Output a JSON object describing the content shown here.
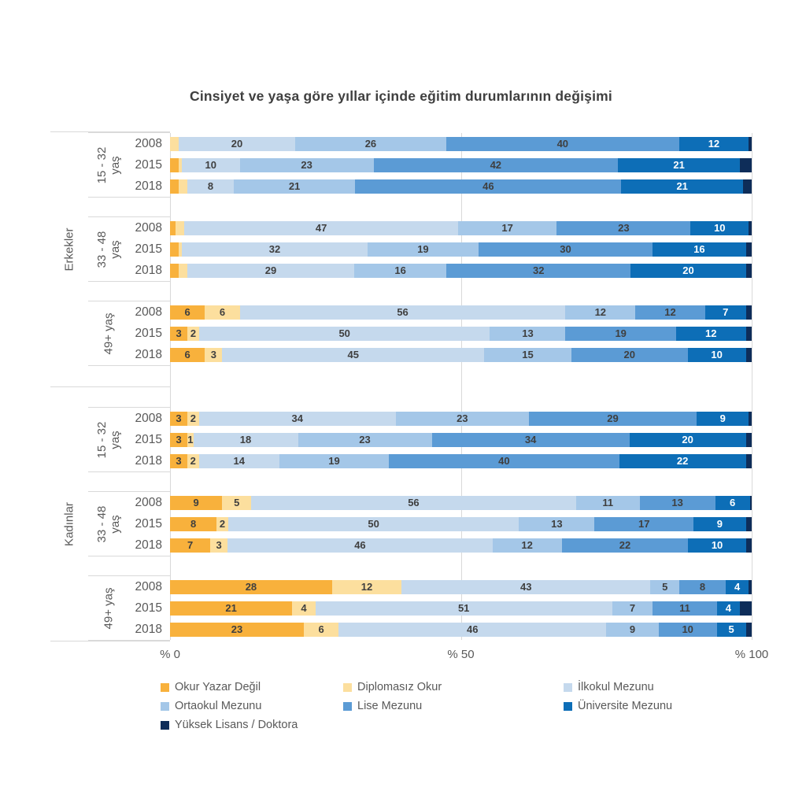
{
  "title": "Cinsiyet ve yaşa göre yıllar içinde eğitim durumlarının değişimi",
  "chart_data": {
    "type": "bar",
    "stacked": true,
    "orientation": "horizontal",
    "unit": "%",
    "xlim": [
      0,
      100
    ],
    "x_ticks": [
      "% 0",
      "% 50",
      "% 100"
    ],
    "grid": "vertical lines at 0, 50, 100",
    "legend_position": "bottom",
    "categories": [
      "Okur Yazar Değil",
      "Diplomasız Okur",
      "İlkokul Mezunu",
      "Ortaokul Mezunu",
      "Lise Mezunu",
      "Üniversite Mezunu",
      "Yüksek Lisans / Doktora"
    ],
    "category_colors": [
      "#F8B13C",
      "#FCDF9E",
      "#C5D9ED",
      "#A4C7E8",
      "#5B9BD5",
      "#0D6EB7",
      "#0E2D59"
    ],
    "groups": [
      {
        "gender": "Erkekler",
        "age_groups": [
          {
            "age": "15 - 32 yaş",
            "age_lines": "15 - 32\nyaş",
            "rows": [
              {
                "year": "2008",
                "values": [
                  0,
                  1.5,
                  20,
                  26,
                  40,
                  12,
                  0.5
                ],
                "labels": [
                  "",
                  "",
                  "20",
                  "26",
                  "40",
                  "12",
                  ""
                ]
              },
              {
                "year": "2015",
                "values": [
                  1.5,
                  0.5,
                  10,
                  23,
                  42,
                  21,
                  2
                ],
                "labels": [
                  "",
                  "",
                  "10",
                  "23",
                  "42",
                  "21",
                  ""
                ]
              },
              {
                "year": "2018",
                "values": [
                  1.5,
                  1.5,
                  8,
                  21,
                  46,
                  21,
                  1.5
                ],
                "labels": [
                  "",
                  "",
                  "8",
                  "21",
                  "46",
                  "21",
                  ""
                ]
              }
            ]
          },
          {
            "age": "33 - 48 yaş",
            "age_lines": "33 - 48\nyaş",
            "rows": [
              {
                "year": "2008",
                "values": [
                  1,
                  1.5,
                  47,
                  17,
                  23,
                  10,
                  0.5
                ],
                "labels": [
                  "",
                  "",
                  "47",
                  "17",
                  "23",
                  "10",
                  ""
                ]
              },
              {
                "year": "2015",
                "values": [
                  1.5,
                  0.5,
                  32,
                  19,
                  30,
                  16,
                  1
                ],
                "labels": [
                  "",
                  "",
                  "32",
                  "19",
                  "30",
                  "16",
                  ""
                ]
              },
              {
                "year": "2018",
                "values": [
                  1.5,
                  1.5,
                  29,
                  16,
                  32,
                  20,
                  1
                ],
                "labels": [
                  "",
                  "",
                  "29",
                  "16",
                  "32",
                  "20",
                  ""
                ]
              }
            ]
          },
          {
            "age": "49+ yaş",
            "age_lines": "49+ yaş",
            "rows": [
              {
                "year": "2008",
                "values": [
                  6,
                  6,
                  56,
                  12,
                  12,
                  7,
                  1
                ],
                "labels": [
                  "6",
                  "6",
                  "56",
                  "12",
                  "12",
                  "7",
                  ""
                ]
              },
              {
                "year": "2015",
                "values": [
                  3,
                  2,
                  50,
                  13,
                  19,
                  12,
                  1
                ],
                "labels": [
                  "3",
                  "2",
                  "50",
                  "13",
                  "19",
                  "12",
                  ""
                ]
              },
              {
                "year": "2018",
                "values": [
                  6,
                  3,
                  45,
                  15,
                  20,
                  10,
                  1
                ],
                "labels": [
                  "6",
                  "3",
                  "45",
                  "15",
                  "20",
                  "10",
                  ""
                ]
              }
            ]
          }
        ]
      },
      {
        "gender": "Kadınlar",
        "age_groups": [
          {
            "age": "15 - 32 yaş",
            "age_lines": "15 - 32\nyaş",
            "rows": [
              {
                "year": "2008",
                "values": [
                  3,
                  2,
                  34,
                  23,
                  29,
                  9,
                  0.5
                ],
                "labels": [
                  "3",
                  "2",
                  "34",
                  "23",
                  "29",
                  "9",
                  ""
                ]
              },
              {
                "year": "2015",
                "values": [
                  3,
                  1,
                  18,
                  23,
                  34,
                  20,
                  1
                ],
                "labels": [
                  "3",
                  "1",
                  "18",
                  "23",
                  "34",
                  "20",
                  ""
                ]
              },
              {
                "year": "2018",
                "values": [
                  3,
                  2,
                  14,
                  19,
                  40,
                  22,
                  1
                ],
                "labels": [
                  "3",
                  "2",
                  "14",
                  "19",
                  "40",
                  "22",
                  ""
                ]
              }
            ]
          },
          {
            "age": "33 - 48 yaş",
            "age_lines": "33 - 48\nyaş",
            "rows": [
              {
                "year": "2008",
                "values": [
                  9,
                  5,
                  56,
                  11,
                  13,
                  6,
                  0.3
                ],
                "labels": [
                  "9",
                  "5",
                  "56",
                  "11",
                  "13",
                  "6",
                  ""
                ]
              },
              {
                "year": "2015",
                "values": [
                  8,
                  2,
                  50,
                  13,
                  17,
                  9,
                  1
                ],
                "labels": [
                  "8",
                  "2",
                  "50",
                  "13",
                  "17",
                  "9",
                  ""
                ]
              },
              {
                "year": "2018",
                "values": [
                  7,
                  3,
                  46,
                  12,
                  22,
                  10,
                  1
                ],
                "labels": [
                  "7",
                  "3",
                  "46",
                  "12",
                  "22",
                  "10",
                  ""
                ]
              }
            ]
          },
          {
            "age": "49+ yaş",
            "age_lines": "49+ yaş",
            "rows": [
              {
                "year": "2008",
                "values": [
                  28,
                  12,
                  43,
                  5,
                  8,
                  4,
                  0.5
                ],
                "labels": [
                  "28",
                  "12",
                  "43",
                  "5",
                  "8",
                  "4",
                  ""
                ]
              },
              {
                "year": "2015",
                "values": [
                  21,
                  4,
                  51,
                  7,
                  11,
                  4,
                  2
                ],
                "labels": [
                  "21",
                  "4",
                  "51",
                  "7",
                  "11",
                  "4",
                  ""
                ]
              },
              {
                "year": "2018",
                "values": [
                  23,
                  6,
                  46,
                  9,
                  10,
                  5,
                  1
                ],
                "labels": [
                  "23",
                  "6",
                  "46",
                  "9",
                  "10",
                  "5",
                  ""
                ]
              }
            ]
          }
        ]
      }
    ]
  },
  "legend": {
    "items": [
      {
        "label": "Okur Yazar Değil",
        "color": "#F8B13C"
      },
      {
        "label": "Diplomasız Okur",
        "color": "#FCDF9E"
      },
      {
        "label": "İlkokul Mezunu",
        "color": "#C5D9ED"
      },
      {
        "label": "Ortaokul Mezunu",
        "color": "#A4C7E8"
      },
      {
        "label": "Lise Mezunu",
        "color": "#5B9BD5"
      },
      {
        "label": "Üniversite Mezunu",
        "color": "#0D6EB7"
      },
      {
        "label": "Yüksek Lisans / Doktora",
        "color": "#0E2D59"
      }
    ]
  },
  "colors": {
    "title_text": "#3f3f3f",
    "axis_text": "#595959",
    "bar_label_dark": "#3f3f3f",
    "bar_label_light": "#ffffff",
    "gridline": "#d9d9d9",
    "background": "#ffffff"
  }
}
